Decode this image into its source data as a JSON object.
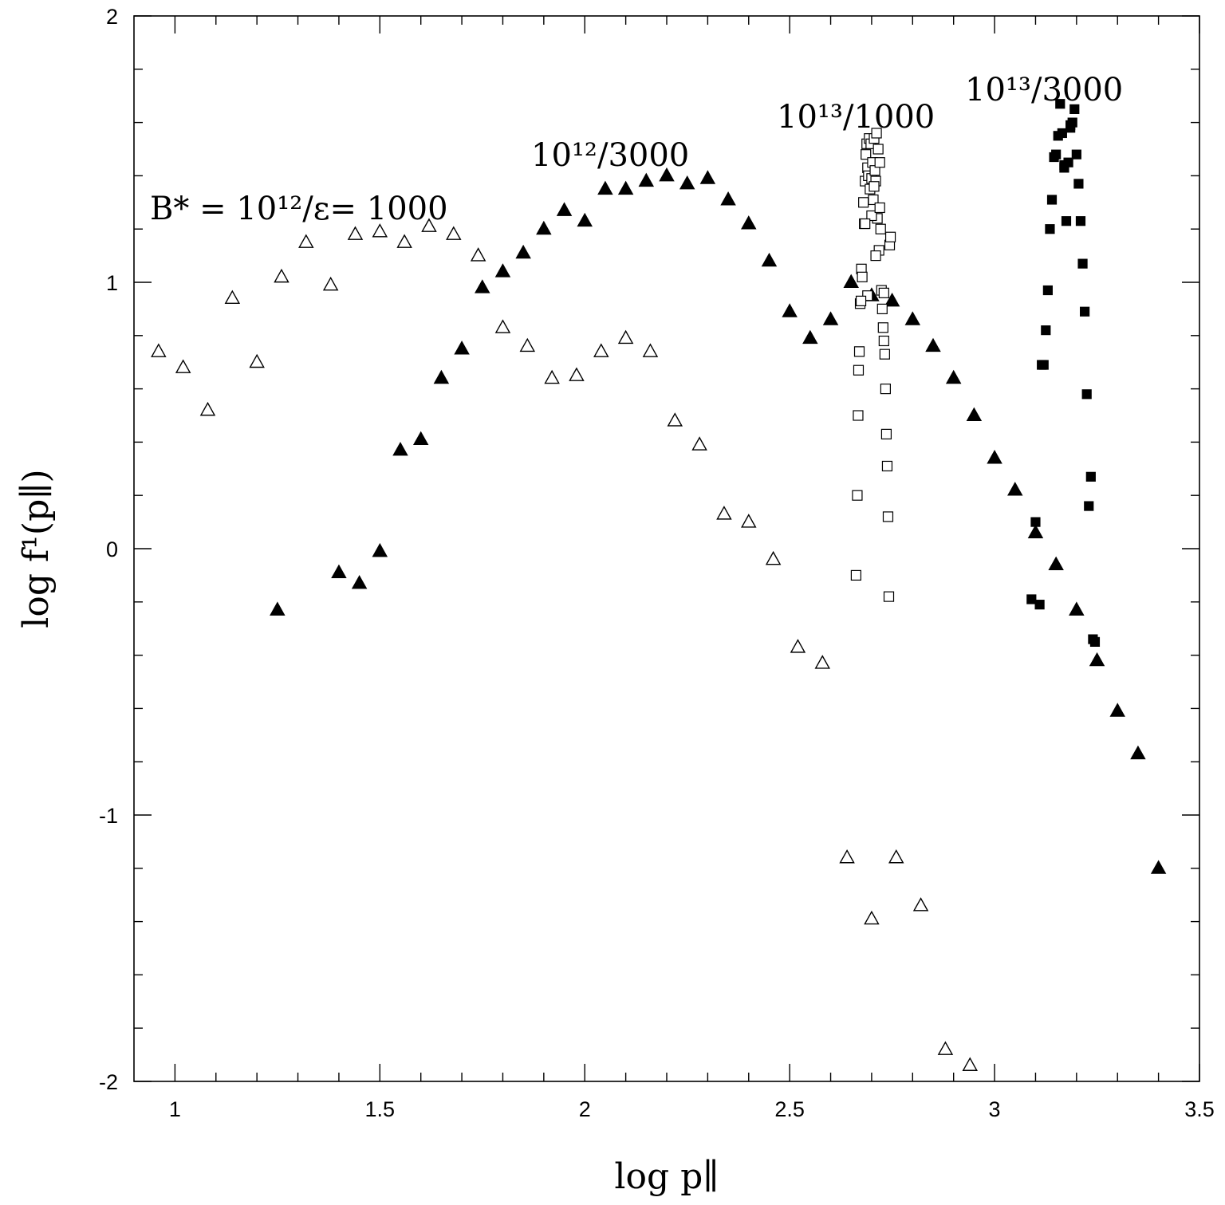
{
  "chart_data": {
    "type": "scatter",
    "title": "",
    "xlabel": "log p∥",
    "ylabel": "log f¹(p∥)",
    "xlim": [
      0.9,
      3.5
    ],
    "ylim": [
      -2,
      2
    ],
    "x_ticks": [
      "1",
      "1.5",
      "2",
      "2.5",
      "3",
      "3.5"
    ],
    "y_ticks": [
      "2",
      "1",
      "0",
      "-1",
      "-2"
    ],
    "annotations": [
      {
        "text": "B* = 10¹²/ε= 1000",
        "series": "open-triangles"
      },
      {
        "text": "10¹²/3000",
        "series": "filled-triangles"
      },
      {
        "text": "10¹³/1000",
        "series": "open-squares"
      },
      {
        "text": "10¹³/3000",
        "series": "filled-squares"
      }
    ],
    "series": [
      {
        "name": "B* = 10¹²/ε= 1000",
        "marker": "open-triangle",
        "x": [
          0.96,
          1.02,
          1.08,
          1.14,
          1.2,
          1.26,
          1.32,
          1.38,
          1.44,
          1.5,
          1.56,
          1.62,
          1.68,
          1.74,
          1.8,
          1.86,
          1.92,
          1.98,
          2.04,
          2.1,
          2.16,
          2.22,
          2.28,
          2.34,
          2.4,
          2.46,
          2.52,
          2.58,
          2.64,
          2.7,
          2.76,
          2.82,
          2.88,
          2.94
        ],
        "y": [
          0.74,
          0.68,
          0.52,
          0.94,
          0.7,
          1.02,
          1.15,
          0.99,
          1.18,
          1.19,
          1.15,
          1.21,
          1.18,
          1.1,
          0.83,
          0.76,
          0.64,
          0.65,
          0.74,
          0.79,
          0.74,
          0.48,
          0.39,
          0.13,
          0.1,
          -0.04,
          -0.37,
          -0.43,
          -1.16,
          -1.39,
          -1.16,
          -1.34,
          -1.88,
          -1.94
        ]
      },
      {
        "name": "10¹²/3000",
        "marker": "filled-triangle",
        "x": [
          1.25,
          1.4,
          1.45,
          1.5,
          1.55,
          1.6,
          1.65,
          1.7,
          1.75,
          1.8,
          1.85,
          1.9,
          1.95,
          2.0,
          2.05,
          2.1,
          2.15,
          2.2,
          2.25,
          2.3,
          2.35,
          2.4,
          2.45,
          2.5,
          2.55,
          2.6,
          2.65,
          2.7,
          2.75,
          2.8,
          2.85,
          2.9,
          2.95,
          3.0,
          3.05,
          3.1,
          3.15,
          3.2,
          3.25,
          3.3,
          3.35,
          3.4
        ],
        "y": [
          -0.23,
          -0.09,
          -0.13,
          -0.01,
          0.37,
          0.41,
          0.64,
          0.75,
          0.98,
          1.04,
          1.11,
          1.2,
          1.27,
          1.23,
          1.35,
          1.35,
          1.38,
          1.4,
          1.37,
          1.39,
          1.31,
          1.22,
          1.08,
          0.89,
          0.79,
          0.86,
          1.0,
          0.95,
          0.93,
          0.86,
          0.76,
          0.64,
          0.5,
          0.34,
          0.22,
          0.06,
          -0.06,
          -0.23,
          -0.42,
          -0.61,
          -0.77,
          -1.2
        ]
      },
      {
        "name": "10¹³/1000",
        "marker": "open-square",
        "x": [
          2.662,
          2.665,
          2.667,
          2.668,
          2.67,
          2.672,
          2.675,
          2.677,
          2.68,
          2.682,
          2.684,
          2.686,
          2.688,
          2.69,
          2.692,
          2.694,
          2.696,
          2.698,
          2.7,
          2.702,
          2.704,
          2.706,
          2.708,
          2.71,
          2.712,
          2.714,
          2.716,
          2.718,
          2.72,
          2.722,
          2.724,
          2.726,
          2.728,
          2.73,
          2.732,
          2.734,
          2.736,
          2.738,
          2.74,
          2.742,
          2.744,
          2.746,
          2.69,
          2.7,
          2.71,
          2.72,
          2.73,
          2.684,
          2.674,
          2.706
        ],
        "y": [
          -0.1,
          0.2,
          0.5,
          0.67,
          0.74,
          0.92,
          1.05,
          1.02,
          1.3,
          1.22,
          1.38,
          1.48,
          1.52,
          1.43,
          1.4,
          1.54,
          1.35,
          1.52,
          1.39,
          1.45,
          1.31,
          1.54,
          1.42,
          1.38,
          1.56,
          1.24,
          1.5,
          1.12,
          1.45,
          1.2,
          0.97,
          0.9,
          0.83,
          0.78,
          0.73,
          0.6,
          0.43,
          0.31,
          0.12,
          -0.18,
          1.14,
          1.17,
          0.95,
          1.25,
          1.1,
          1.28,
          0.96,
          1.22,
          0.93,
          1.36
        ]
      },
      {
        "name": "10¹³/3000",
        "marker": "filled-square",
        "x": [
          3.09,
          3.1,
          3.11,
          3.115,
          3.12,
          3.125,
          3.13,
          3.135,
          3.14,
          3.145,
          3.15,
          3.155,
          3.16,
          3.165,
          3.17,
          3.175,
          3.18,
          3.185,
          3.19,
          3.195,
          3.2,
          3.205,
          3.21,
          3.215,
          3.22,
          3.225,
          3.23,
          3.235,
          3.24,
          3.245,
          3.17,
          3.185
        ],
        "y": [
          -0.19,
          0.1,
          -0.21,
          0.69,
          0.69,
          0.82,
          0.97,
          1.2,
          1.31,
          1.47,
          1.48,
          1.55,
          1.67,
          1.56,
          1.43,
          1.23,
          1.45,
          1.58,
          1.6,
          1.65,
          1.48,
          1.37,
          1.23,
          1.07,
          0.89,
          0.58,
          0.16,
          0.27,
          -0.34,
          -0.35,
          1.44,
          1.59
        ]
      }
    ]
  }
}
